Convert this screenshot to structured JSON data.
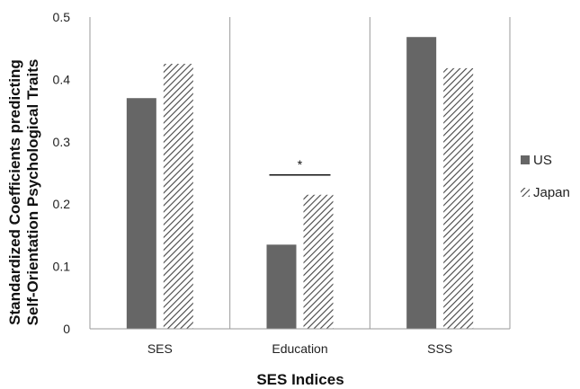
{
  "chart_data": {
    "type": "bar",
    "title": "",
    "xlabel": "SES Indices",
    "ylabel_lines": [
      "Standardized Coefficients predicting",
      "Self-Orientation Psychological Traits"
    ],
    "categories": [
      "SES",
      "Education",
      "SSS"
    ],
    "series": [
      {
        "name": "US",
        "values": [
          0.37,
          0.135,
          0.468
        ],
        "color": "#666666",
        "pattern": "solid"
      },
      {
        "name": "Japan",
        "values": [
          0.425,
          0.215,
          0.418
        ],
        "color": "#444444",
        "pattern": "diagonal-hatch"
      }
    ],
    "ylim": [
      0,
      0.5
    ],
    "yticks": [
      "0",
      "0.1",
      "0.2",
      "0.3",
      "0.4",
      "0.5"
    ],
    "grid": false,
    "category_separators": true,
    "legend": "right",
    "annotations": [
      {
        "text": "*",
        "category": "Education",
        "type": "significance-bracket"
      }
    ]
  }
}
